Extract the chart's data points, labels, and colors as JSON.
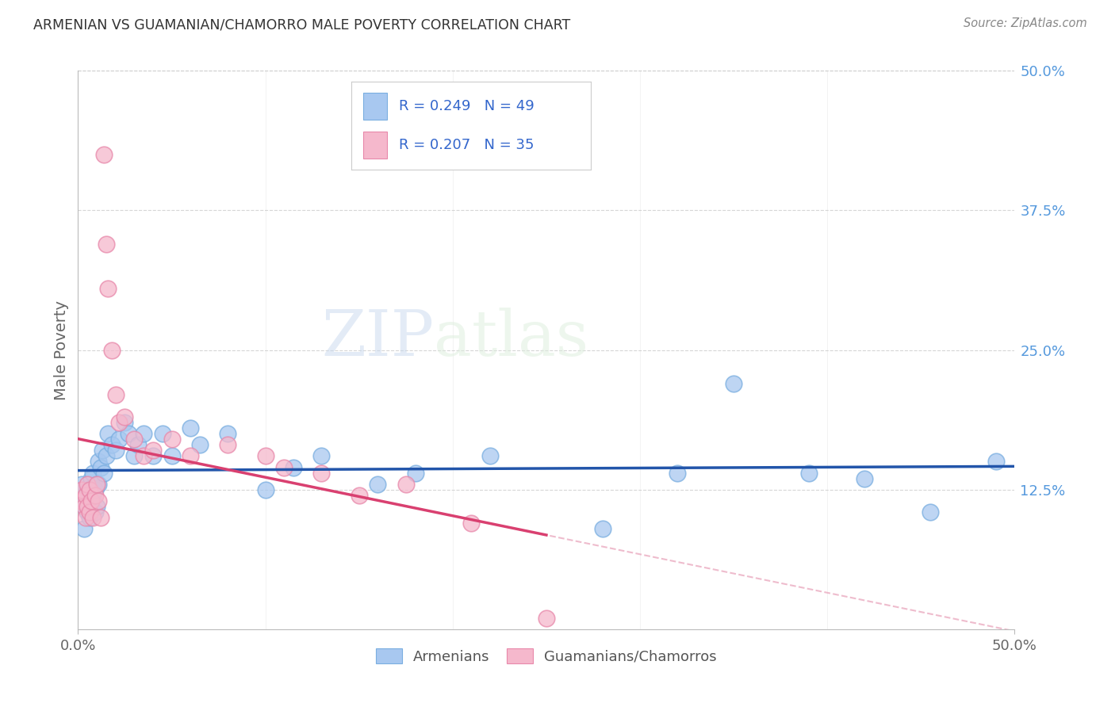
{
  "title": "ARMENIAN VS GUAMANIAN/CHAMORRO MALE POVERTY CORRELATION CHART",
  "source": "Source: ZipAtlas.com",
  "ylabel": "Male Poverty",
  "xlim": [
    0,
    0.5
  ],
  "ylim": [
    0,
    0.5
  ],
  "yticks": [
    0.125,
    0.25,
    0.375,
    0.5
  ],
  "ytick_labels": [
    "12.5%",
    "25.0%",
    "37.5%",
    "50.0%"
  ],
  "armenian_R": 0.249,
  "armenian_N": 49,
  "guamanian_R": 0.207,
  "guamanian_N": 35,
  "armenian_color": "#a8c8f0",
  "armenian_edge_color": "#7aaee0",
  "armenian_line_color": "#2255aa",
  "guamanian_color": "#f5b8cc",
  "guamanian_edge_color": "#e888aa",
  "guamanian_line_color": "#d94070",
  "guamanian_dash_color": "#e8a0b8",
  "legend_label_armenian": "Armenians",
  "legend_label_guamanian": "Guamanians/Chamorros",
  "watermark_zip": "ZIP",
  "watermark_atlas": "atlas",
  "background_color": "#ffffff",
  "grid_color": "#cccccc",
  "title_color": "#333333",
  "axis_label_color": "#666666",
  "right_axis_color": "#5599dd",
  "legend_text_color": "#3366cc",
  "armenian_x": [
    0.002,
    0.003,
    0.003,
    0.004,
    0.005,
    0.005,
    0.006,
    0.007,
    0.007,
    0.008,
    0.008,
    0.009,
    0.009,
    0.01,
    0.01,
    0.011,
    0.011,
    0.012,
    0.013,
    0.014,
    0.015,
    0.016,
    0.018,
    0.02,
    0.022,
    0.025,
    0.027,
    0.03,
    0.032,
    0.035,
    0.04,
    0.045,
    0.05,
    0.06,
    0.065,
    0.08,
    0.1,
    0.115,
    0.13,
    0.16,
    0.18,
    0.22,
    0.28,
    0.32,
    0.35,
    0.39,
    0.42,
    0.455,
    0.49
  ],
  "armenian_y": [
    0.13,
    0.11,
    0.09,
    0.115,
    0.125,
    0.105,
    0.1,
    0.135,
    0.115,
    0.14,
    0.12,
    0.125,
    0.105,
    0.13,
    0.11,
    0.15,
    0.13,
    0.145,
    0.16,
    0.14,
    0.155,
    0.175,
    0.165,
    0.16,
    0.17,
    0.185,
    0.175,
    0.155,
    0.165,
    0.175,
    0.155,
    0.175,
    0.155,
    0.18,
    0.165,
    0.175,
    0.125,
    0.145,
    0.155,
    0.13,
    0.14,
    0.155,
    0.09,
    0.14,
    0.22,
    0.14,
    0.135,
    0.105,
    0.15
  ],
  "guamanian_x": [
    0.001,
    0.002,
    0.003,
    0.004,
    0.004,
    0.005,
    0.005,
    0.006,
    0.006,
    0.007,
    0.008,
    0.009,
    0.01,
    0.011,
    0.012,
    0.014,
    0.015,
    0.016,
    0.018,
    0.02,
    0.022,
    0.025,
    0.03,
    0.035,
    0.04,
    0.05,
    0.06,
    0.08,
    0.1,
    0.11,
    0.13,
    0.15,
    0.175,
    0.21,
    0.25
  ],
  "guamanian_y": [
    0.115,
    0.125,
    0.11,
    0.12,
    0.1,
    0.13,
    0.11,
    0.125,
    0.105,
    0.115,
    0.1,
    0.12,
    0.13,
    0.115,
    0.1,
    0.425,
    0.345,
    0.305,
    0.25,
    0.21,
    0.185,
    0.19,
    0.17,
    0.155,
    0.16,
    0.17,
    0.155,
    0.165,
    0.155,
    0.145,
    0.14,
    0.12,
    0.13,
    0.095,
    0.01
  ]
}
